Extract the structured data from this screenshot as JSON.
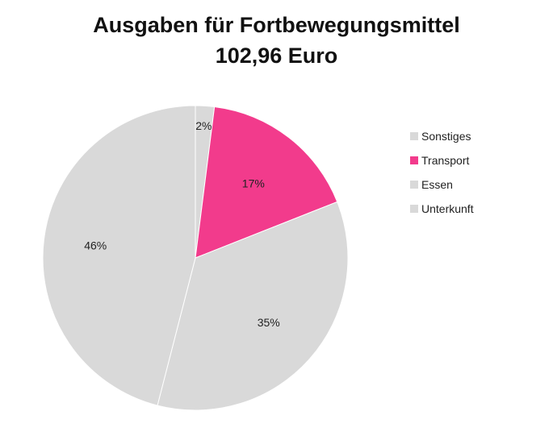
{
  "chart_data": {
    "type": "pie",
    "title": "Ausgaben für Fortbewegungsmittel",
    "subtitle": "102,96 Euro",
    "legend_position": "right",
    "slices": [
      {
        "name": "Sonstiges",
        "value": 2,
        "label": "2%",
        "color": "#d9d9d9"
      },
      {
        "name": "Transport",
        "value": 17,
        "label": "17%",
        "color": "#f23b8c"
      },
      {
        "name": "Essen",
        "value": 35,
        "label": "35%",
        "color": "#d9d9d9"
      },
      {
        "name": "Unterkunft",
        "value": 46,
        "label": "46%",
        "color": "#d9d9d9"
      }
    ]
  }
}
